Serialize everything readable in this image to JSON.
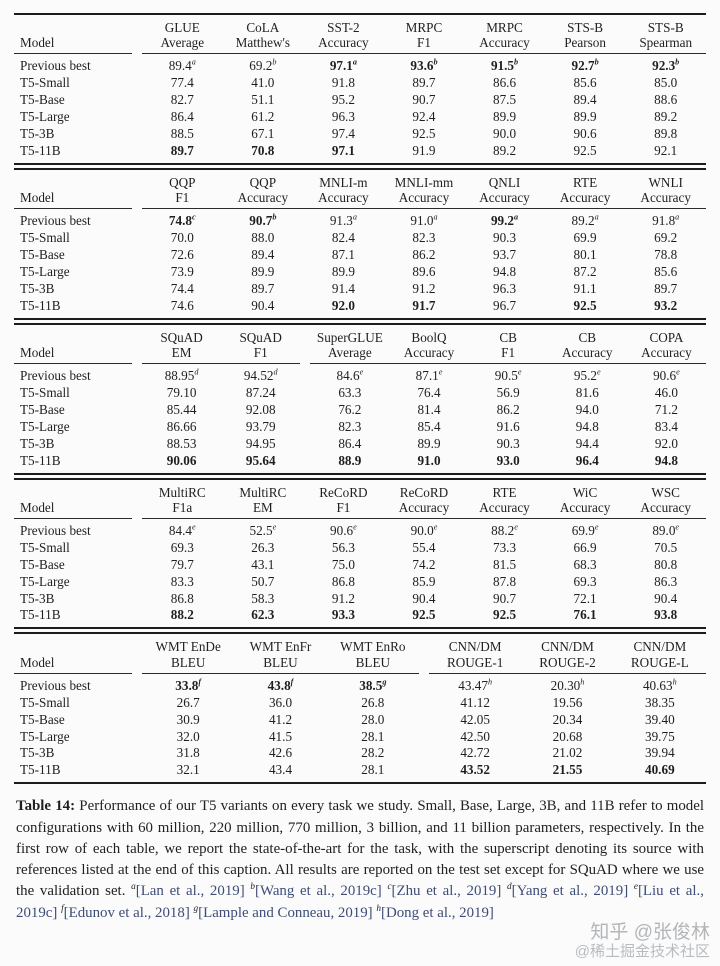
{
  "tables": [
    {
      "columns": [
        [
          "",
          "Model"
        ],
        [
          "GLUE",
          "Average"
        ],
        [
          "CoLA",
          "Matthew's"
        ],
        [
          "SST-2",
          "Accuracy"
        ],
        [
          "MRPC",
          "F1"
        ],
        [
          "MRPC",
          "Accuracy"
        ],
        [
          "STS-B",
          "Pearson"
        ],
        [
          "STS-B",
          "Spearman"
        ]
      ],
      "group_breaks": [
        0
      ],
      "rows": [
        {
          "label": "Previous best",
          "cells": [
            {
              "v": "89.4",
              "sup": "a"
            },
            {
              "v": "69.2",
              "sup": "b"
            },
            {
              "v": "97.1",
              "sup": "a",
              "b": true
            },
            {
              "v": "93.6",
              "sup": "b",
              "b": true
            },
            {
              "v": "91.5",
              "sup": "b",
              "b": true
            },
            {
              "v": "92.7",
              "sup": "b",
              "b": true
            },
            {
              "v": "92.3",
              "sup": "b",
              "b": true
            }
          ]
        },
        {
          "label": "T5-Small",
          "cells": [
            "77.4",
            "41.0",
            "91.8",
            "89.7",
            "86.6",
            "85.6",
            "85.0"
          ]
        },
        {
          "label": "T5-Base",
          "cells": [
            "82.7",
            "51.1",
            "95.2",
            "90.7",
            "87.5",
            "89.4",
            "88.6"
          ]
        },
        {
          "label": "T5-Large",
          "cells": [
            "86.4",
            "61.2",
            "96.3",
            "92.4",
            "89.9",
            "89.9",
            "89.2"
          ]
        },
        {
          "label": "T5-3B",
          "cells": [
            "88.5",
            "67.1",
            "97.4",
            "92.5",
            "90.0",
            "90.6",
            "89.8"
          ]
        },
        {
          "label": "T5-11B",
          "cells": [
            {
              "v": "89.7",
              "b": true
            },
            {
              "v": "70.8",
              "b": true
            },
            {
              "v": "97.1",
              "b": true
            },
            "91.9",
            "89.2",
            "92.5",
            "92.1"
          ]
        }
      ]
    },
    {
      "columns": [
        [
          "",
          "Model"
        ],
        [
          "QQP",
          "F1"
        ],
        [
          "QQP",
          "Accuracy"
        ],
        [
          "MNLI-m",
          "Accuracy"
        ],
        [
          "MNLI-mm",
          "Accuracy"
        ],
        [
          "QNLI",
          "Accuracy"
        ],
        [
          "RTE",
          "Accuracy"
        ],
        [
          "WNLI",
          "Accuracy"
        ]
      ],
      "group_breaks": [
        0
      ],
      "rows": [
        {
          "label": "Previous best",
          "cells": [
            {
              "v": "74.8",
              "sup": "c",
              "b": true
            },
            {
              "v": "90.7",
              "sup": "b",
              "b": true
            },
            {
              "v": "91.3",
              "sup": "a"
            },
            {
              "v": "91.0",
              "sup": "a"
            },
            {
              "v": "99.2",
              "sup": "a",
              "b": true
            },
            {
              "v": "89.2",
              "sup": "a"
            },
            {
              "v": "91.8",
              "sup": "a"
            }
          ]
        },
        {
          "label": "T5-Small",
          "cells": [
            "70.0",
            "88.0",
            "82.4",
            "82.3",
            "90.3",
            "69.9",
            "69.2"
          ]
        },
        {
          "label": "T5-Base",
          "cells": [
            "72.6",
            "89.4",
            "87.1",
            "86.2",
            "93.7",
            "80.1",
            "78.8"
          ]
        },
        {
          "label": "T5-Large",
          "cells": [
            "73.9",
            "89.9",
            "89.9",
            "89.6",
            "94.8",
            "87.2",
            "85.6"
          ]
        },
        {
          "label": "T5-3B",
          "cells": [
            "74.4",
            "89.7",
            "91.4",
            "91.2",
            "96.3",
            "91.1",
            "89.7"
          ]
        },
        {
          "label": "T5-11B",
          "cells": [
            "74.6",
            "90.4",
            {
              "v": "92.0",
              "b": true
            },
            {
              "v": "91.7",
              "b": true
            },
            "96.7",
            {
              "v": "92.5",
              "b": true
            },
            {
              "v": "93.2",
              "b": true
            }
          ]
        }
      ]
    },
    {
      "columns": [
        [
          "",
          "Model"
        ],
        [
          "SQuAD",
          "EM"
        ],
        [
          "SQuAD",
          "F1"
        ],
        [
          "SuperGLUE",
          "Average"
        ],
        [
          "BoolQ",
          "Accuracy"
        ],
        [
          "CB",
          "F1"
        ],
        [
          "CB",
          "Accuracy"
        ],
        [
          "COPA",
          "Accuracy"
        ]
      ],
      "group_breaks": [
        0,
        2
      ],
      "rows": [
        {
          "label": "Previous best",
          "cells": [
            {
              "v": "88.95",
              "sup": "d"
            },
            {
              "v": "94.52",
              "sup": "d"
            },
            {
              "v": "84.6",
              "sup": "e"
            },
            {
              "v": "87.1",
              "sup": "e"
            },
            {
              "v": "90.5",
              "sup": "e"
            },
            {
              "v": "95.2",
              "sup": "e"
            },
            {
              "v": "90.6",
              "sup": "e"
            }
          ]
        },
        {
          "label": "T5-Small",
          "cells": [
            "79.10",
            "87.24",
            "63.3",
            "76.4",
            "56.9",
            "81.6",
            "46.0"
          ]
        },
        {
          "label": "T5-Base",
          "cells": [
            "85.44",
            "92.08",
            "76.2",
            "81.4",
            "86.2",
            "94.0",
            "71.2"
          ]
        },
        {
          "label": "T5-Large",
          "cells": [
            "86.66",
            "93.79",
            "82.3",
            "85.4",
            "91.6",
            "94.8",
            "83.4"
          ]
        },
        {
          "label": "T5-3B",
          "cells": [
            "88.53",
            "94.95",
            "86.4",
            "89.9",
            "90.3",
            "94.4",
            "92.0"
          ]
        },
        {
          "label": "T5-11B",
          "cells": [
            {
              "v": "90.06",
              "b": true
            },
            {
              "v": "95.64",
              "b": true
            },
            {
              "v": "88.9",
              "b": true
            },
            {
              "v": "91.0",
              "b": true
            },
            {
              "v": "93.0",
              "b": true
            },
            {
              "v": "96.4",
              "b": true
            },
            {
              "v": "94.8",
              "b": true
            }
          ]
        }
      ]
    },
    {
      "columns": [
        [
          "",
          "Model"
        ],
        [
          "MultiRC",
          "F1a"
        ],
        [
          "MultiRC",
          "EM"
        ],
        [
          "ReCoRD",
          "F1"
        ],
        [
          "ReCoRD",
          "Accuracy"
        ],
        [
          "RTE",
          "Accuracy"
        ],
        [
          "WiC",
          "Accuracy"
        ],
        [
          "WSC",
          "Accuracy"
        ]
      ],
      "group_breaks": [
        0
      ],
      "rows": [
        {
          "label": "Previous best",
          "cells": [
            {
              "v": "84.4",
              "sup": "e"
            },
            {
              "v": "52.5",
              "sup": "e"
            },
            {
              "v": "90.6",
              "sup": "e"
            },
            {
              "v": "90.0",
              "sup": "e"
            },
            {
              "v": "88.2",
              "sup": "e"
            },
            {
              "v": "69.9",
              "sup": "e"
            },
            {
              "v": "89.0",
              "sup": "e"
            }
          ]
        },
        {
          "label": "T5-Small",
          "cells": [
            "69.3",
            "26.3",
            "56.3",
            "55.4",
            "73.3",
            "66.9",
            "70.5"
          ]
        },
        {
          "label": "T5-Base",
          "cells": [
            "79.7",
            "43.1",
            "75.0",
            "74.2",
            "81.5",
            "68.3",
            "80.8"
          ]
        },
        {
          "label": "T5-Large",
          "cells": [
            "83.3",
            "50.7",
            "86.8",
            "85.9",
            "87.8",
            "69.3",
            "86.3"
          ]
        },
        {
          "label": "T5-3B",
          "cells": [
            "86.8",
            "58.3",
            "91.2",
            "90.4",
            "90.7",
            "72.1",
            "90.4"
          ]
        },
        {
          "label": "T5-11B",
          "cells": [
            {
              "v": "88.2",
              "b": true
            },
            {
              "v": "62.3",
              "b": true
            },
            {
              "v": "93.3",
              "b": true
            },
            {
              "v": "92.5",
              "b": true
            },
            {
              "v": "92.5",
              "b": true
            },
            {
              "v": "76.1",
              "b": true
            },
            {
              "v": "93.8",
              "b": true
            }
          ]
        }
      ]
    },
    {
      "columns": [
        [
          "",
          "Model"
        ],
        [
          "WMT EnDe",
          "BLEU"
        ],
        [
          "WMT EnFr",
          "BLEU"
        ],
        [
          "WMT EnRo",
          "BLEU"
        ],
        [
          "CNN/DM",
          "ROUGE-1"
        ],
        [
          "CNN/DM",
          "ROUGE-2"
        ],
        [
          "CNN/DM",
          "ROUGE-L"
        ]
      ],
      "group_breaks": [
        0,
        3
      ],
      "rows": [
        {
          "label": "Previous best",
          "cells": [
            {
              "v": "33.8",
              "sup": "f",
              "b": true
            },
            {
              "v": "43.8",
              "sup": "f",
              "b": true
            },
            {
              "v": "38.5",
              "sup": "g",
              "b": true
            },
            {
              "v": "43.47",
              "sup": "h"
            },
            {
              "v": "20.30",
              "sup": "h"
            },
            {
              "v": "40.63",
              "sup": "h"
            }
          ]
        },
        {
          "label": "T5-Small",
          "cells": [
            "26.7",
            "36.0",
            "26.8",
            "41.12",
            "19.56",
            "38.35"
          ]
        },
        {
          "label": "T5-Base",
          "cells": [
            "30.9",
            "41.2",
            "28.0",
            "42.05",
            "20.34",
            "39.40"
          ]
        },
        {
          "label": "T5-Large",
          "cells": [
            "32.0",
            "41.5",
            "28.1",
            "42.50",
            "20.68",
            "39.75"
          ]
        },
        {
          "label": "T5-3B",
          "cells": [
            "31.8",
            "42.6",
            "28.2",
            "42.72",
            "21.02",
            "39.94"
          ]
        },
        {
          "label": "T5-11B",
          "cells": [
            "32.1",
            "43.4",
            "28.1",
            {
              "v": "43.52",
              "b": true
            },
            {
              "v": "21.55",
              "b": true
            },
            {
              "v": "40.69",
              "b": true
            }
          ]
        }
      ]
    }
  ],
  "caption": {
    "label": "Table 14:",
    "body": "Performance of our T5 variants on every task we study. Small, Base, Large, 3B, and 11B refer to model configurations with 60 million, 220 million, 770 million, 3 billion, and 11 billion parameters, respectively. In the first row of each table, we report the state-of-the-art for the task, with the superscript denoting its source with references listed at the end of this caption. All results are reported on the test set except for SQuAD where we use the validation set.",
    "references": [
      {
        "sup": "a",
        "text": "[Lan et al., 2019]"
      },
      {
        "sup": "b",
        "text": "[Wang et al., 2019c]"
      },
      {
        "sup": "c",
        "text": "[Zhu et al., 2019]"
      },
      {
        "sup": "d",
        "text": "[Yang et al., 2019]"
      },
      {
        "sup": "e",
        "text": "[Liu et al., 2019c]"
      },
      {
        "sup": "f",
        "text": "[Edunov et al., 2018]"
      },
      {
        "sup": "g",
        "text": "[Lample and Conneau, 2019]"
      },
      {
        "sup": "h",
        "text": "[Dong et al., 2019]"
      }
    ],
    "citation_color": "#3e4d78"
  },
  "watermark": {
    "line1": "知乎 @张俊林",
    "line2": "@稀土掘金技术社区"
  }
}
